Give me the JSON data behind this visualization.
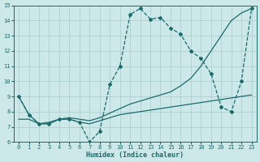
{
  "xlabel": "Humidex (Indice chaleur)",
  "xlim": [
    -0.5,
    23.5
  ],
  "ylim": [
    6,
    15
  ],
  "xticks": [
    0,
    1,
    2,
    3,
    4,
    5,
    6,
    7,
    8,
    9,
    10,
    11,
    12,
    13,
    14,
    15,
    16,
    17,
    18,
    19,
    20,
    21,
    22,
    23
  ],
  "yticks": [
    6,
    7,
    8,
    9,
    10,
    11,
    12,
    13,
    14,
    15
  ],
  "bg_color": "#cce8e8",
  "line_color": "#1a6b6b",
  "grid_color": "#aacccc",
  "s1_x": [
    0,
    1,
    2,
    3,
    4,
    5,
    6,
    7,
    8,
    9,
    10,
    11,
    12,
    13,
    14,
    15,
    16,
    17,
    18,
    19,
    20,
    21,
    22,
    23
  ],
  "s1_y": [
    9.0,
    7.8,
    7.2,
    7.2,
    7.5,
    7.5,
    7.3,
    6.0,
    6.7,
    9.8,
    11.0,
    14.4,
    14.8,
    14.1,
    14.2,
    13.5,
    13.1,
    12.0,
    11.5,
    10.5,
    8.3,
    8.0,
    10.0,
    14.8
  ],
  "s2_x": [
    0,
    1,
    2,
    3,
    4,
    5,
    6,
    7,
    8,
    9,
    10,
    11,
    12,
    13,
    14,
    15,
    16,
    17,
    18,
    19,
    20,
    21,
    22,
    23
  ],
  "s2_y": [
    9.0,
    7.8,
    7.2,
    7.3,
    7.5,
    7.6,
    7.5,
    7.4,
    7.6,
    7.9,
    8.2,
    8.5,
    8.7,
    8.9,
    9.1,
    9.3,
    9.7,
    10.2,
    11.0,
    12.0,
    13.0,
    14.0,
    14.5,
    14.8
  ],
  "s3_x": [
    0,
    1,
    2,
    3,
    4,
    5,
    6,
    7,
    8,
    9,
    10,
    11,
    12,
    13,
    14,
    15,
    16,
    17,
    18,
    19,
    20,
    21,
    22,
    23
  ],
  "s3_y": [
    7.5,
    7.5,
    7.2,
    7.2,
    7.5,
    7.5,
    7.3,
    7.2,
    7.4,
    7.6,
    7.8,
    7.9,
    8.0,
    8.1,
    8.2,
    8.3,
    8.4,
    8.5,
    8.6,
    8.7,
    8.8,
    8.9,
    9.0,
    9.1
  ]
}
